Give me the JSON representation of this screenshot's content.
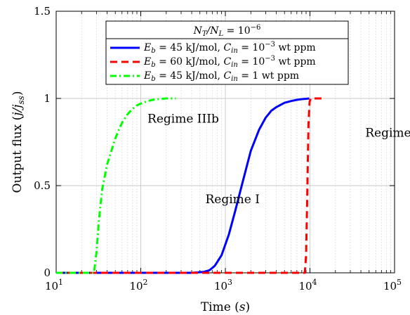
{
  "chart_data": {
    "type": "line",
    "x_scale": "log",
    "xlim": [
      10,
      100000
    ],
    "ylim": [
      0,
      1.5
    ],
    "grid": true,
    "xlabel_prefix": "Time (",
    "xlabel_var": "s",
    "xlabel_suffix": ")",
    "ylabel_prefix": "Output flux (",
    "ylabel_var": "j/j",
    "ylabel_sub": "ss",
    "ylabel_suffix": ")",
    "x_ticks": [
      {
        "value": 10,
        "base": "10",
        "exp": "1"
      },
      {
        "value": 100,
        "base": "10",
        "exp": "2"
      },
      {
        "value": 1000,
        "base": "10",
        "exp": "3"
      },
      {
        "value": 10000,
        "base": "10",
        "exp": "4"
      },
      {
        "value": 100000,
        "base": "10",
        "exp": "5"
      }
    ],
    "y_ticks": [
      {
        "value": 0,
        "label": "0"
      },
      {
        "value": 0.5,
        "label": "0.5"
      },
      {
        "value": 1,
        "label": "1"
      },
      {
        "value": 1.5,
        "label": "1.5"
      }
    ],
    "legend": {
      "position": "top-right",
      "title": "N_T/N_L = 10^-6"
    },
    "series": [
      {
        "name": "E_b = 45 kJ/mol, C_in = 10^-3 wt ppm",
        "color": "#0000ff",
        "style": "solid",
        "x": [
          10,
          400,
          550,
          650,
          750,
          900,
          1100,
          1300,
          1600,
          2000,
          2500,
          3000,
          3500,
          4000,
          5000,
          6000,
          7000,
          8000,
          9000,
          9800
        ],
        "y": [
          0,
          0,
          0.005,
          0.015,
          0.04,
          0.1,
          0.22,
          0.35,
          0.52,
          0.7,
          0.82,
          0.89,
          0.93,
          0.95,
          0.975,
          0.985,
          0.992,
          0.996,
          0.998,
          1.0
        ]
      },
      {
        "name": "E_b = 60 kJ/mol, C_in = 10^-3 wt ppm",
        "color": "#ff0000",
        "style": "dashed",
        "x": [
          10,
          8700,
          9000,
          9300,
          9600,
          9900,
          10200,
          11000,
          13000,
          15000
        ],
        "y": [
          0,
          0,
          0.1,
          0.45,
          0.85,
          0.98,
          1.0,
          1.0,
          1.0,
          1.0
        ]
      },
      {
        "name": "E_b = 45 kJ/mol, C_in = 1 wt ppm",
        "color": "#00ff00",
        "style": "dashdot",
        "x": [
          10,
          28,
          30,
          32,
          35,
          40,
          45,
          50,
          55,
          60,
          70,
          80,
          90,
          100,
          120,
          150,
          200,
          260
        ],
        "y": [
          0,
          0,
          0.12,
          0.3,
          0.48,
          0.62,
          0.7,
          0.77,
          0.82,
          0.86,
          0.91,
          0.94,
          0.96,
          0.97,
          0.985,
          0.995,
          1.0,
          1.0
        ]
      }
    ],
    "annotations": [
      {
        "text": "Regime IIIb",
        "x": 120,
        "y": 0.86
      },
      {
        "text": "Regime I",
        "x": 580,
        "y": 0.4
      },
      {
        "text": "Regime II",
        "x": 45000,
        "y": 0.78
      }
    ]
  },
  "legend_texts": {
    "title_lhs": "N",
    "title_sub1": "T",
    "title_sub2": "L",
    "title_mid": "/N",
    "title_eq": " = 10",
    "title_exp": "−6",
    "entries": [
      {
        "lhs": "E",
        "sub": "b",
        "rhs1": " = 45 kJ/mol, ",
        "c": "C",
        "csub": "in",
        "rhs2": " = 10",
        "exp": "−3",
        "rhs3": " wt ppm"
      },
      {
        "lhs": "E",
        "sub": "b",
        "rhs1": " = 60 kJ/mol, ",
        "c": "C",
        "csub": "in",
        "rhs2": " = 10",
        "exp": "−3",
        "rhs3": " wt ppm"
      },
      {
        "lhs": "E",
        "sub": "b",
        "rhs1": " = 45 kJ/mol, ",
        "c": "C",
        "csub": "in",
        "rhs2": " = 1",
        "exp": "",
        "rhs3": " wt ppm"
      }
    ]
  }
}
